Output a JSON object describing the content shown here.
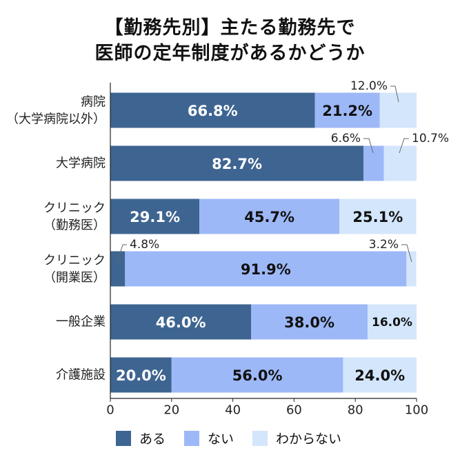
{
  "title": {
    "line1": "【勤務先別】主たる勤務先で",
    "line2": "医師の定年制度があるかどうか"
  },
  "colors": {
    "aru": "#3e6591",
    "nai": "#9db8f7",
    "wakaranai": "#d4e6fb",
    "axis": "#222222"
  },
  "chart_data": {
    "type": "bar",
    "orientation": "horizontal",
    "stacked": true,
    "categories": [
      [
        "病院",
        "（大学病院以外）"
      ],
      [
        "大学病院"
      ],
      [
        "クリニック",
        "（勤務医）"
      ],
      [
        "クリニック",
        "（開業医）"
      ],
      [
        "一般企業"
      ],
      [
        "介護施設"
      ]
    ],
    "series": [
      {
        "name": "ある",
        "values": [
          66.8,
          82.7,
          29.1,
          4.8,
          46.0,
          20.0
        ]
      },
      {
        "name": "ない",
        "values": [
          21.2,
          6.6,
          45.7,
          91.9,
          38.0,
          56.0
        ]
      },
      {
        "name": "わからない",
        "values": [
          12.0,
          10.7,
          25.1,
          3.2,
          16.0,
          24.0
        ]
      }
    ],
    "value_labels": [
      [
        "66.8%",
        "21.2%",
        "12.0%"
      ],
      [
        "82.7%",
        "6.6%",
        "10.7%"
      ],
      [
        "29.1%",
        "45.7%",
        "25.1%"
      ],
      [
        "4.8%",
        "91.9%",
        "3.2%"
      ],
      [
        "46.0%",
        "38.0%",
        "16.0%"
      ],
      [
        "20.0%",
        "56.0%",
        "24.0%"
      ]
    ],
    "xlim": [
      0,
      100
    ],
    "xticks": [
      "0",
      "20",
      "40",
      "60",
      "80",
      "100"
    ],
    "grid": false,
    "legend_position": "bottom"
  },
  "legend": [
    {
      "label": "ある",
      "color": "#3e6591"
    },
    {
      "label": "ない",
      "color": "#9db8f7"
    },
    {
      "label": "わからない",
      "color": "#d4e6fb"
    }
  ]
}
